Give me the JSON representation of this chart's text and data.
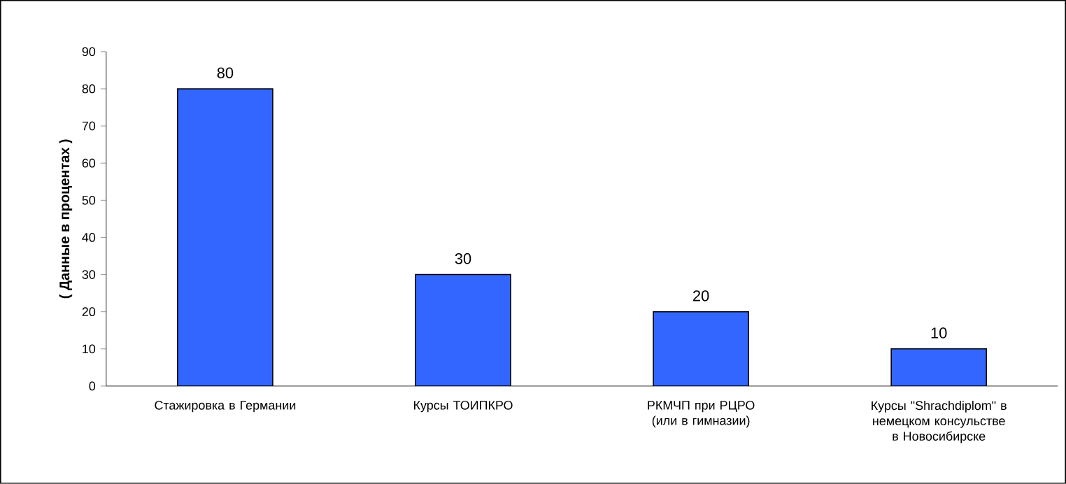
{
  "chart_data": {
    "type": "bar",
    "ylabel": "( Данные в процентах )",
    "categories": [
      "Стажировка в Германии",
      "Курсы ТОИПКРО",
      "РКМЧП   при  РЦРО (или в гимназии)",
      "Курсы \"Shrachdiplom\" в немецком консульстве в Новосибирске"
    ],
    "values": [
      80,
      30,
      20,
      10
    ],
    "color": "#3366ff",
    "ylim": [
      0,
      90
    ],
    "yticks": [
      0,
      10,
      20,
      30,
      40,
      50,
      60,
      70,
      80,
      90
    ],
    "data_labels": true
  }
}
